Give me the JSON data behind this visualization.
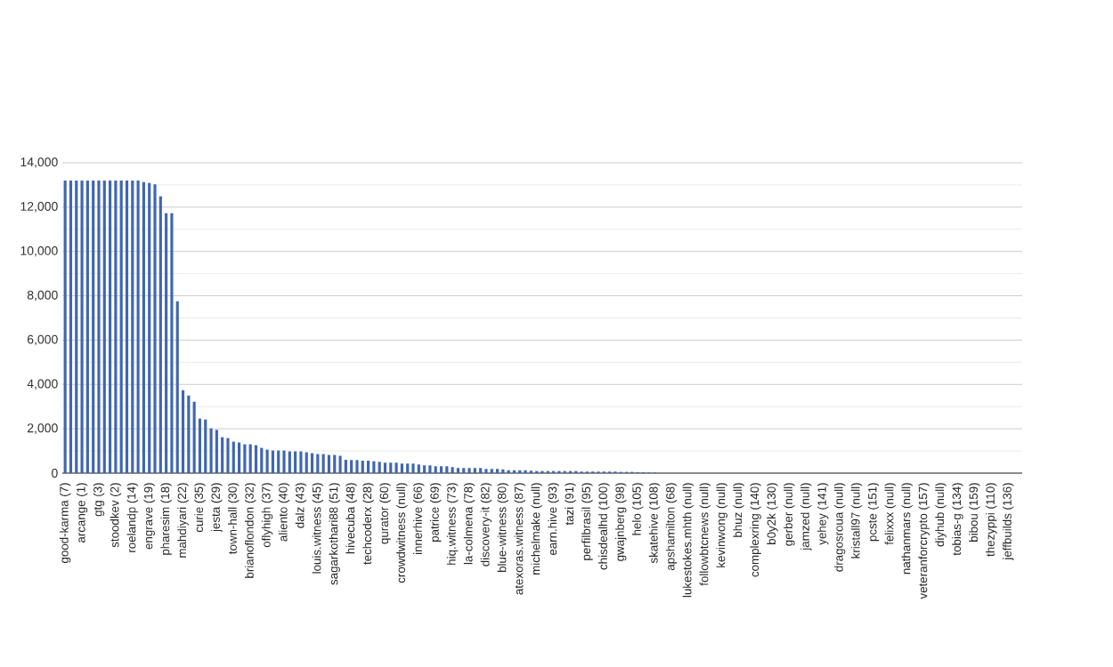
{
  "chart_data": {
    "type": "bar",
    "color": "#3f66b0",
    "grid": "y",
    "ylim": [
      0,
      14000
    ],
    "yticks": [
      {
        "value": 0,
        "label": "0"
      },
      {
        "value": 2000,
        "label": "2,000"
      },
      {
        "value": 4000,
        "label": "4,000"
      },
      {
        "value": 6000,
        "label": "6,000"
      },
      {
        "value": 8000,
        "label": "8,000"
      },
      {
        "value": 10000,
        "label": "10,000"
      },
      {
        "value": 12000,
        "label": "12,000"
      },
      {
        "value": 14000,
        "label": "14,000"
      }
    ],
    "categories": [
      "good-karma (7)",
      null,
      null,
      "arcange (1)",
      null,
      null,
      "gtg (3)",
      null,
      null,
      "stoodkev (2)",
      null,
      null,
      "roelandp (14)",
      null,
      null,
      "engrave (19)",
      null,
      null,
      "pharesim (18)",
      null,
      null,
      "mahdiyari (22)",
      null,
      null,
      "curie (35)",
      null,
      null,
      "jesta (29)",
      null,
      null,
      "town-hall (30)",
      null,
      null,
      "brianoflondon (32)",
      null,
      null,
      "oflyhigh (37)",
      null,
      null,
      "aliento (40)",
      null,
      null,
      "dalz (43)",
      null,
      null,
      "louis.witness (45)",
      null,
      null,
      "sagarkothari88 (51)",
      null,
      null,
      "hivecuba (48)",
      null,
      null,
      "techcoderx (28)",
      null,
      null,
      "qurator (60)",
      null,
      null,
      "crowdwitness (null)",
      null,
      null,
      "innerhive (66)",
      null,
      null,
      "patrice (69)",
      null,
      null,
      "hiq.witness (73)",
      null,
      null,
      "la-colmena (78)",
      null,
      null,
      "discovery-it (82)",
      null,
      null,
      "blue-witness (80)",
      null,
      null,
      "atexoras.witness (87)",
      null,
      null,
      "michelmake (null)",
      null,
      null,
      "earn.hive (93)",
      null,
      null,
      "tazi (91)",
      null,
      null,
      "perfilbrasil (95)",
      null,
      null,
      "chisdealhd (100)",
      null,
      null,
      "gwajnberg (98)",
      null,
      null,
      "helo (105)",
      null,
      null,
      "skatehive (108)",
      null,
      null,
      "apshamilton (68)",
      null,
      null,
      "lukestokes.mhth (null)",
      null,
      null,
      "followbtcnews (null)",
      null,
      null,
      "kevinwong (null)",
      null,
      null,
      "bhuz (null)",
      null,
      null,
      "complexring (140)",
      null,
      null,
      "b0y2k (130)",
      null,
      null,
      "gerber (null)",
      null,
      null,
      "jamzed (null)",
      null,
      null,
      "yehey (141)",
      null,
      null,
      "dragosroua (null)",
      null,
      null,
      "kristall97 (null)",
      null,
      null,
      "pcste (151)",
      null,
      null,
      "felixxx (null)",
      null,
      null,
      "nathanmars (null)",
      null,
      null,
      "veteranforcrypto (157)",
      null,
      null,
      "diyhub (null)",
      null,
      null,
      "tobias-g (134)",
      null,
      null,
      "bibou (159)",
      null,
      null,
      "thezyppi (110)",
      null,
      null,
      "jeffbuilds (136)",
      null,
      null
    ],
    "values": [
      13200,
      13200,
      13200,
      13200,
      13200,
      13200,
      13200,
      13200,
      13200,
      13200,
      13200,
      13200,
      13200,
      13200,
      13130,
      13090,
      13030,
      12490,
      11720,
      11720,
      7750,
      3740,
      3500,
      3220,
      2460,
      2420,
      2020,
      1950,
      1620,
      1580,
      1420,
      1380,
      1300,
      1300,
      1260,
      1140,
      1060,
      1020,
      1020,
      1020,
      980,
      980,
      980,
      940,
      900,
      860,
      860,
      820,
      820,
      780,
      600,
      590,
      590,
      560,
      560,
      535,
      510,
      470,
      470,
      470,
      430,
      430,
      430,
      390,
      350,
      350,
      310,
      310,
      310,
      270,
      230,
      230,
      230,
      230,
      230,
      190,
      190,
      190,
      170,
      130,
      130,
      130,
      130,
      110,
      95,
      95,
      95,
      95,
      95,
      95,
      95,
      95,
      70,
      70,
      70,
      70,
      70,
      70,
      70,
      55,
      55,
      55,
      40,
      40,
      30,
      30,
      null,
      null,
      null,
      null,
      null,
      null,
      null,
      null,
      null,
      null,
      null,
      null,
      null,
      null,
      null,
      null,
      null,
      null,
      null,
      null,
      null,
      null,
      null,
      null,
      null,
      null,
      null,
      null,
      null,
      null,
      null,
      null,
      null,
      null,
      null,
      null,
      null,
      null,
      null,
      null,
      null,
      null,
      null,
      null,
      null,
      null,
      null,
      null,
      null,
      null,
      null,
      null,
      null,
      null,
      null,
      null,
      null,
      null,
      null,
      null,
      null,
      null,
      null,
      null,
      null
    ]
  }
}
